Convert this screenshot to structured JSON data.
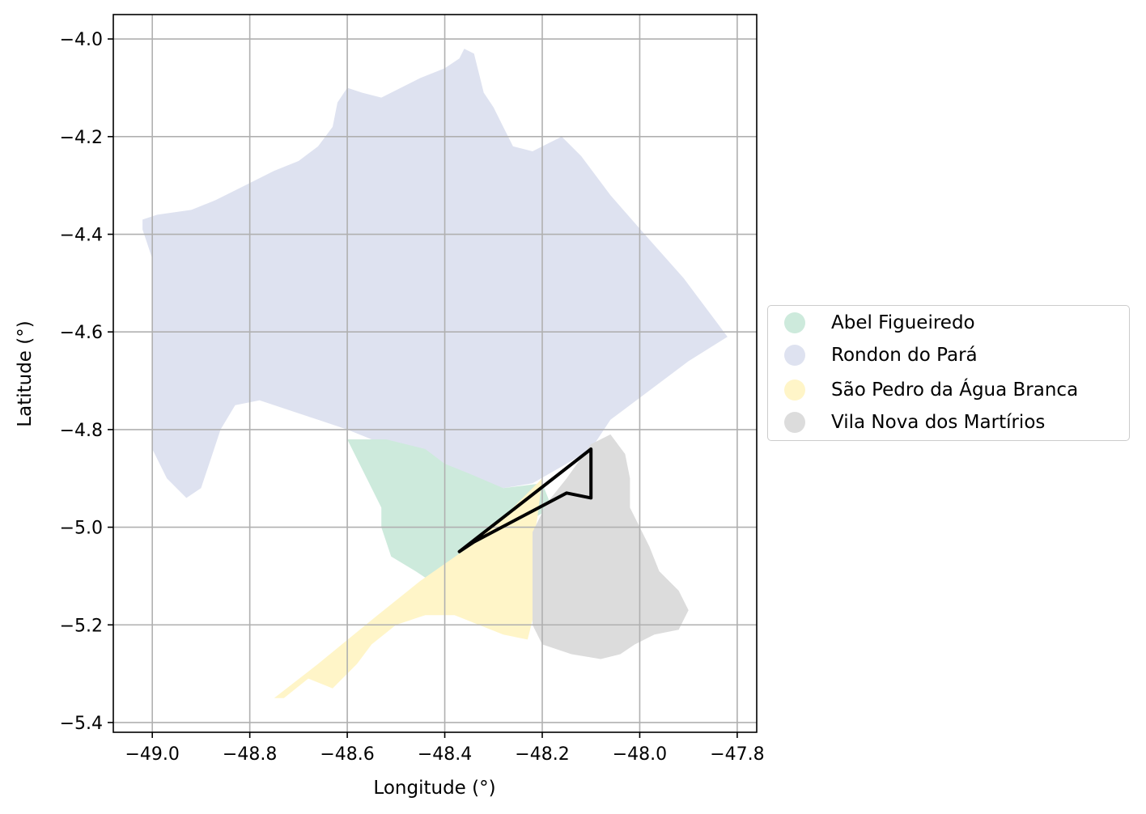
{
  "chart_data": {
    "type": "map",
    "xlabel": "Longitude (°)",
    "ylabel": "Latitude (°)",
    "xlim": [
      -49.08,
      -47.76
    ],
    "ylim": [
      -5.42,
      -3.95
    ],
    "xticks": [
      -49.0,
      -48.8,
      -48.6,
      -48.4,
      -48.2,
      -48.0,
      -47.8
    ],
    "xtick_labels": [
      "−49.0",
      "−48.8",
      "−48.6",
      "−48.4",
      "−48.2",
      "−48.0",
      "−47.8"
    ],
    "yticks": [
      -4.0,
      -4.2,
      -4.4,
      -4.6,
      -4.8,
      -5.0,
      -5.2,
      -5.4
    ],
    "ytick_labels": [
      "−4.0",
      "−4.2",
      "−4.4",
      "−4.6",
      "−4.8",
      "−5.0",
      "−5.2",
      "−5.4"
    ],
    "grid": true,
    "legend_placement": "center-right outside",
    "legend": [
      {
        "label": "Abel Figueiredo",
        "color": "#cdeadc"
      },
      {
        "label": "Rondon do Pará",
        "color": "#dee2f0"
      },
      {
        "label": "São Pedro da Água Branca",
        "color": "#fff5c8"
      },
      {
        "label": "Vila Nova dos Martírios",
        "color": "#dcdcdc"
      }
    ],
    "regions": [
      {
        "name": "Rondon do Pará",
        "color": "#dee2f0",
        "polygon": [
          [
            -49.02,
            -4.37
          ],
          [
            -48.99,
            -4.36
          ],
          [
            -48.92,
            -4.35
          ],
          [
            -48.87,
            -4.33
          ],
          [
            -48.81,
            -4.3
          ],
          [
            -48.75,
            -4.27
          ],
          [
            -48.7,
            -4.25
          ],
          [
            -48.66,
            -4.22
          ],
          [
            -48.63,
            -4.18
          ],
          [
            -48.62,
            -4.13
          ],
          [
            -48.6,
            -4.1
          ],
          [
            -48.57,
            -4.11
          ],
          [
            -48.53,
            -4.12
          ],
          [
            -48.49,
            -4.1
          ],
          [
            -48.45,
            -4.08
          ],
          [
            -48.4,
            -4.06
          ],
          [
            -48.37,
            -4.04
          ],
          [
            -48.36,
            -4.02
          ],
          [
            -48.34,
            -4.03
          ],
          [
            -48.33,
            -4.07
          ],
          [
            -48.32,
            -4.11
          ],
          [
            -48.3,
            -4.14
          ],
          [
            -48.28,
            -4.18
          ],
          [
            -48.26,
            -4.22
          ],
          [
            -48.22,
            -4.23
          ],
          [
            -48.18,
            -4.21
          ],
          [
            -48.16,
            -4.2
          ],
          [
            -48.12,
            -4.24
          ],
          [
            -48.06,
            -4.32
          ],
          [
            -47.99,
            -4.4
          ],
          [
            -47.91,
            -4.49
          ],
          [
            -47.82,
            -4.61
          ],
          [
            -47.9,
            -4.66
          ],
          [
            -47.98,
            -4.72
          ],
          [
            -48.06,
            -4.78
          ],
          [
            -48.1,
            -4.84
          ],
          [
            -48.15,
            -4.87
          ],
          [
            -48.22,
            -4.91
          ],
          [
            -48.28,
            -4.92
          ],
          [
            -48.35,
            -4.9
          ],
          [
            -48.4,
            -4.88
          ],
          [
            -48.45,
            -4.85
          ],
          [
            -48.5,
            -4.83
          ],
          [
            -48.55,
            -4.82
          ],
          [
            -48.6,
            -4.8
          ],
          [
            -48.66,
            -4.78
          ],
          [
            -48.72,
            -4.76
          ],
          [
            -48.78,
            -4.74
          ],
          [
            -48.83,
            -4.75
          ],
          [
            -48.86,
            -4.8
          ],
          [
            -48.88,
            -4.86
          ],
          [
            -48.9,
            -4.92
          ],
          [
            -48.93,
            -4.94
          ],
          [
            -48.97,
            -4.9
          ],
          [
            -49.0,
            -4.84
          ],
          [
            -49.0,
            -4.7
          ],
          [
            -49.0,
            -4.55
          ],
          [
            -49.0,
            -4.45
          ],
          [
            -49.02,
            -4.39
          ]
        ]
      },
      {
        "name": "Abel Figueiredo",
        "color": "#cdeadc",
        "polygon": [
          [
            -48.6,
            -4.82
          ],
          [
            -48.52,
            -4.82
          ],
          [
            -48.44,
            -4.84
          ],
          [
            -48.4,
            -4.87
          ],
          [
            -48.35,
            -4.89
          ],
          [
            -48.28,
            -4.92
          ],
          [
            -48.2,
            -4.91
          ],
          [
            -48.18,
            -4.96
          ],
          [
            -48.25,
            -5.0
          ],
          [
            -48.32,
            -5.04
          ],
          [
            -48.38,
            -5.08
          ],
          [
            -48.43,
            -5.11
          ],
          [
            -48.46,
            -5.09
          ],
          [
            -48.51,
            -5.06
          ],
          [
            -48.53,
            -5.0
          ],
          [
            -48.53,
            -4.96
          ],
          [
            -48.56,
            -4.9
          ]
        ]
      },
      {
        "name": "São Pedro da Água Branca",
        "color": "#fff5c8",
        "polygon": [
          [
            -48.2,
            -4.9
          ],
          [
            -48.21,
            -4.98
          ],
          [
            -48.22,
            -5.04
          ],
          [
            -48.21,
            -5.07
          ],
          [
            -48.22,
            -5.13
          ],
          [
            -48.22,
            -5.19
          ],
          [
            -48.23,
            -5.23
          ],
          [
            -48.28,
            -5.22
          ],
          [
            -48.33,
            -5.2
          ],
          [
            -48.38,
            -5.18
          ],
          [
            -48.44,
            -5.18
          ],
          [
            -48.5,
            -5.2
          ],
          [
            -48.55,
            -5.24
          ],
          [
            -48.58,
            -5.28
          ],
          [
            -48.63,
            -5.33
          ],
          [
            -48.68,
            -5.31
          ],
          [
            -48.73,
            -5.35
          ],
          [
            -48.75,
            -5.35
          ],
          [
            -48.66,
            -5.28
          ],
          [
            -48.55,
            -5.19
          ],
          [
            -48.45,
            -5.11
          ],
          [
            -48.35,
            -5.04
          ],
          [
            -48.28,
            -4.98
          ]
        ]
      },
      {
        "name": "Vila Nova dos Martírios",
        "color": "#dcdcdc",
        "polygon": [
          [
            -48.1,
            -4.83
          ],
          [
            -48.06,
            -4.81
          ],
          [
            -48.03,
            -4.85
          ],
          [
            -48.02,
            -4.9
          ],
          [
            -48.02,
            -4.96
          ],
          [
            -48.0,
            -5.0
          ],
          [
            -47.98,
            -5.04
          ],
          [
            -47.96,
            -5.09
          ],
          [
            -47.92,
            -5.13
          ],
          [
            -47.9,
            -5.17
          ],
          [
            -47.92,
            -5.21
          ],
          [
            -47.97,
            -5.22
          ],
          [
            -48.01,
            -5.24
          ],
          [
            -48.04,
            -5.26
          ],
          [
            -48.08,
            -5.27
          ],
          [
            -48.14,
            -5.26
          ],
          [
            -48.2,
            -5.24
          ],
          [
            -48.22,
            -5.2
          ],
          [
            -48.22,
            -5.14
          ],
          [
            -48.22,
            -5.07
          ],
          [
            -48.22,
            -5.01
          ],
          [
            -48.19,
            -4.95
          ],
          [
            -48.15,
            -4.9
          ]
        ]
      }
    ],
    "outline": {
      "color": "#000000",
      "path": [
        [
          -48.37,
          -5.05
        ],
        [
          -48.1,
          -4.84
        ],
        [
          -48.1,
          -4.94
        ],
        [
          -48.15,
          -4.93
        ],
        [
          -48.34,
          -5.03
        ],
        [
          -48.37,
          -5.05
        ]
      ]
    }
  }
}
